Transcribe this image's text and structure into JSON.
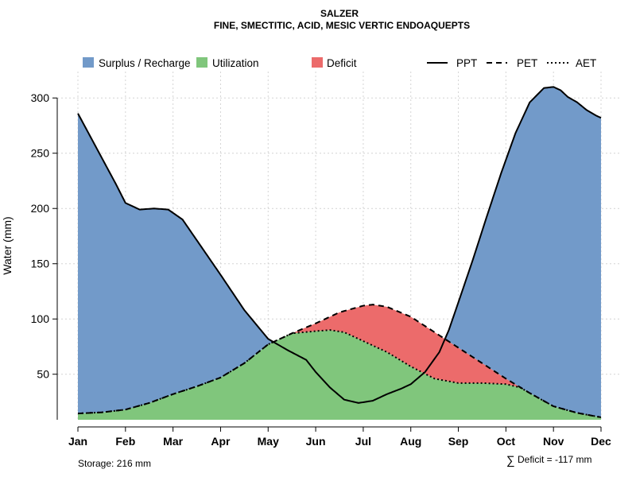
{
  "chart_data": {
    "type": "area",
    "title": "SALZER",
    "subtitle": "FINE, SMECTITIC, ACID, MESIC VERTIC ENDOAQUEPTS",
    "xlabel": "",
    "ylabel": "Water (mm)",
    "categories": [
      "Jan",
      "Feb",
      "Mar",
      "Apr",
      "May",
      "Jun",
      "Jul",
      "Aug",
      "Sep",
      "Oct",
      "Nov",
      "Dec"
    ],
    "ylim": [
      0,
      315
    ],
    "yticks": [
      50,
      100,
      150,
      200,
      250,
      300
    ],
    "grid": true,
    "series": [
      {
        "name": "PPT",
        "style": "solid",
        "x": [
          0,
          0.3,
          0.6,
          0.8,
          1.0,
          1.3,
          1.6,
          1.9,
          2.2,
          2.6,
          3.0,
          3.5,
          4.0,
          4.4,
          4.8,
          5.0,
          5.3,
          5.6,
          5.9,
          6.2,
          6.5,
          6.8,
          7.0,
          7.3,
          7.6,
          7.8,
          8.0,
          8.3,
          8.6,
          8.9,
          9.2,
          9.5,
          9.8,
          10.0,
          10.15,
          10.3,
          10.5,
          10.7,
          10.9,
          11.0
        ],
        "values": [
          286,
          262,
          238,
          222,
          205,
          199,
          200,
          199,
          190,
          165,
          140,
          108,
          82,
          72,
          63,
          52,
          38,
          27,
          24,
          26,
          32,
          37,
          41,
          52,
          70,
          90,
          115,
          153,
          193,
          232,
          268,
          296,
          309,
          310,
          307,
          301,
          296,
          289,
          284,
          282
        ]
      },
      {
        "name": "PET",
        "style": "dashed",
        "x": [
          0,
          0.5,
          1.0,
          1.5,
          2.0,
          2.5,
          3.0,
          3.5,
          4.0,
          4.5,
          5.0,
          5.5,
          6.0,
          6.2,
          6.5,
          7.0,
          7.5,
          8.0,
          8.5,
          9.0,
          9.5,
          10.0,
          10.5,
          11.0
        ],
        "values": [
          14.5,
          15.5,
          18,
          24,
          32,
          39,
          47,
          60,
          77,
          87,
          96,
          106,
          112,
          113,
          111,
          102,
          88,
          74,
          60,
          46,
          33,
          21,
          15,
          11
        ]
      },
      {
        "name": "AET",
        "style": "dotted",
        "x": [
          0,
          0.5,
          1.0,
          1.5,
          2.0,
          2.5,
          3.0,
          3.5,
          4.0,
          4.5,
          5.0,
          5.3,
          5.6,
          6.0,
          6.5,
          7.0,
          7.5,
          8.0,
          8.5,
          9.0,
          9.3,
          9.5,
          10.0,
          10.5,
          11.0
        ],
        "values": [
          14.5,
          15.5,
          18,
          24,
          32,
          39,
          47,
          60,
          77,
          87,
          89,
          90,
          88,
          80,
          70,
          57,
          46,
          42,
          42,
          41,
          38,
          33,
          21,
          15,
          11
        ]
      }
    ],
    "legend": {
      "fills": [
        {
          "label": "Surplus / Recharge",
          "color": "#729ac9"
        },
        {
          "label": "Utilization",
          "color": "#80c67c"
        },
        {
          "label": "Deficit",
          "color": "#ec6b6b"
        }
      ],
      "lines": [
        {
          "label": "PPT",
          "style": "solid"
        },
        {
          "label": "PET",
          "style": "dashed"
        },
        {
          "label": "AET",
          "style": "dotted"
        }
      ],
      "placement": "top"
    },
    "annotations": {
      "storage": "Storage: 216 mm",
      "deficit_symbol": "∑",
      "deficit": "Deficit = -117 mm"
    }
  }
}
